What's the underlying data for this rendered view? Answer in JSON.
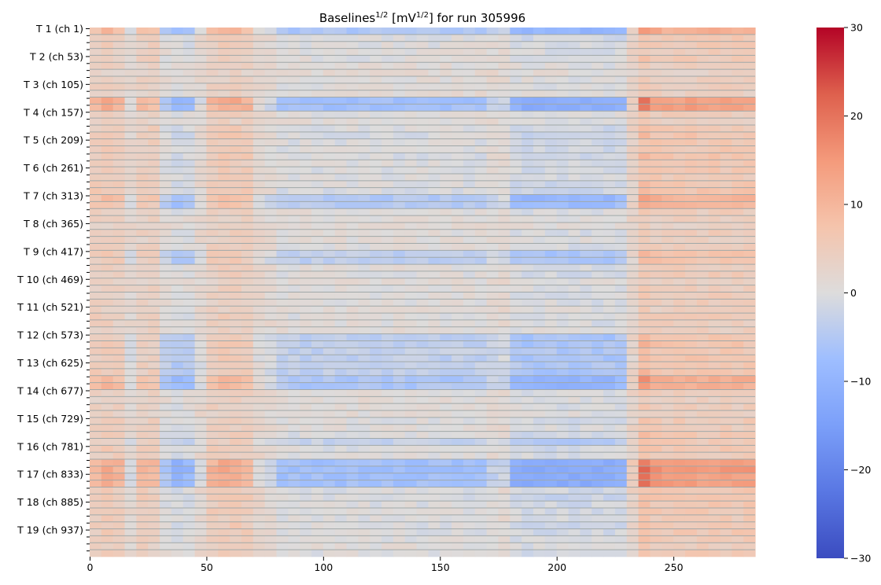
{
  "chart_data": {
    "type": "heatmap",
    "title": {
      "main": "Baselines",
      "sup1": "1/2",
      "mid": " [mV",
      "sup2": "1/2",
      "end": "] for run 305996"
    },
    "xlabel": "",
    "ylabel": "",
    "xlim": [
      0,
      285
    ],
    "x_ticks": [
      0,
      50,
      100,
      150,
      200,
      250
    ],
    "n_channels": 988,
    "channels_per_group": 13,
    "y_tick_labels": [
      "T 1 (ch 1)",
      "T 2 (ch 53)",
      "T 3 (ch 105)",
      "T 4 (ch 157)",
      "T 5 (ch 209)",
      "T 6 (ch 261)",
      "T 7 (ch 313)",
      "T 8 (ch 365)",
      "T 9 (ch 417)",
      "T 10 (ch 469)",
      "T 11 (ch 521)",
      "T 12 (ch 573)",
      "T 13 (ch 625)",
      "T 14 (ch 677)",
      "T 15 (ch 729)",
      "T 16 (ch 781)",
      "T 17 (ch 833)",
      "T 18 (ch 885)",
      "T 19 (ch 937)"
    ],
    "colorbar": {
      "min": -30,
      "max": 30,
      "ticks": [
        30,
        20,
        10,
        0,
        -10,
        -20,
        -30
      ],
      "colormap": "coolwarm"
    },
    "column_step": 5,
    "column_profile": [
      10,
      12,
      10,
      0,
      9,
      9,
      -6,
      -10,
      -9,
      0,
      10,
      12,
      12,
      10,
      1,
      -2,
      -7,
      -7,
      -7,
      -7,
      -7,
      -7,
      -7,
      -7,
      -7,
      -7,
      -7,
      -7,
      -7,
      -7,
      -7,
      -7,
      -7,
      -7,
      -3,
      -2,
      -11,
      -12,
      -12,
      -12,
      -12,
      -12,
      -12,
      -12,
      -12,
      -11,
      5,
      20,
      15,
      14,
      14,
      14,
      14,
      14,
      14,
      14,
      14
    ],
    "group_amplitude": [
      0.8,
      0.3,
      0.25,
      0.2,
      0.25,
      0.15,
      0.1,
      0.15,
      0.2,
      0.15,
      1.0,
      1.0,
      0.2,
      0.15,
      0.3,
      0.35,
      0.3,
      0.3,
      0.35,
      0.3,
      0.3,
      0.25,
      0.3,
      0.35,
      0.75,
      0.65,
      0.2,
      0.15,
      0.1,
      0.2,
      0.15,
      0.2,
      0.5,
      0.5,
      0.2,
      0.25,
      0.15,
      0.2,
      0.2,
      0.2,
      0.15,
      0.25,
      0.2,
      0.15,
      0.5,
      0.5,
      0.45,
      0.5,
      0.45,
      0.5,
      0.8,
      0.8,
      0.2,
      0.15,
      0.2,
      0.15,
      0.25,
      0.2,
      0.3,
      0.4,
      0.3,
      0.25,
      1.0,
      1.05,
      1.0,
      1.0,
      0.3,
      0.35,
      0.3,
      0.3,
      0.25,
      0.3,
      0.3,
      0.25,
      0.2,
      0.25
    ]
  }
}
